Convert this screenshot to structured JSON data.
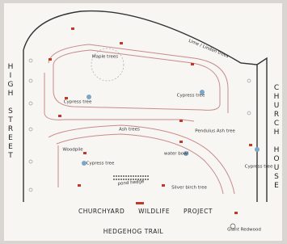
{
  "map": {
    "title": "CHURCHYARD WILDLIFE PROJECT",
    "subtitle": "HEDGEHOG TRAIL",
    "streets": [
      "HIGH STREET",
      "CHURCH HOUSE"
    ],
    "labels": [
      "Maple trees",
      "Lime / Linden trees",
      "Cypress tree",
      "Cypress tree",
      "Pendulus Ash tree",
      "Ash trees",
      "Woodpile",
      "Cypress tree",
      "water bowl",
      "Cypress tree",
      "pond hedge",
      "Silver birch tree",
      "Giant Redwood"
    ]
  }
}
